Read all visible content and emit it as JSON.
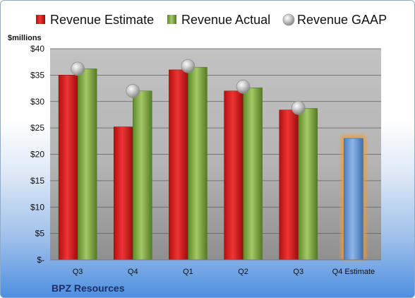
{
  "chart_data": {
    "type": "bar",
    "ylabel": "$millions",
    "ylim": [
      0,
      40
    ],
    "yticks": [
      0,
      5,
      10,
      15,
      20,
      25,
      30,
      35,
      40
    ],
    "ytick_labels": [
      "$-",
      "$5",
      "$10",
      "$15",
      "$20",
      "$25",
      "$30",
      "$35",
      "$40"
    ],
    "categories": [
      "Q3",
      "Q4",
      "Q1",
      "Q2",
      "Q3",
      "Q4 Estimate"
    ],
    "series": [
      {
        "name": "Revenue Estimate",
        "values": [
          35.0,
          25.2,
          36.0,
          32.0,
          28.4,
          23.0
        ],
        "kind": "bar",
        "color": "#d91c1c"
      },
      {
        "name": "Revenue Actual",
        "values": [
          36.2,
          32.0,
          36.5,
          32.6,
          28.7,
          null
        ],
        "kind": "bar",
        "color": "#7fa83c"
      },
      {
        "name": "Revenue GAAP",
        "values": [
          36.2,
          32.0,
          36.7,
          32.8,
          28.8,
          null
        ],
        "kind": "marker",
        "color": "#b9b9b9"
      }
    ],
    "highlight": {
      "category_index": 5,
      "color": "#6f9fd8",
      "glow": "#f39a2e"
    },
    "legend_position": "top",
    "grid": true,
    "footer": "BPZ Resources"
  }
}
